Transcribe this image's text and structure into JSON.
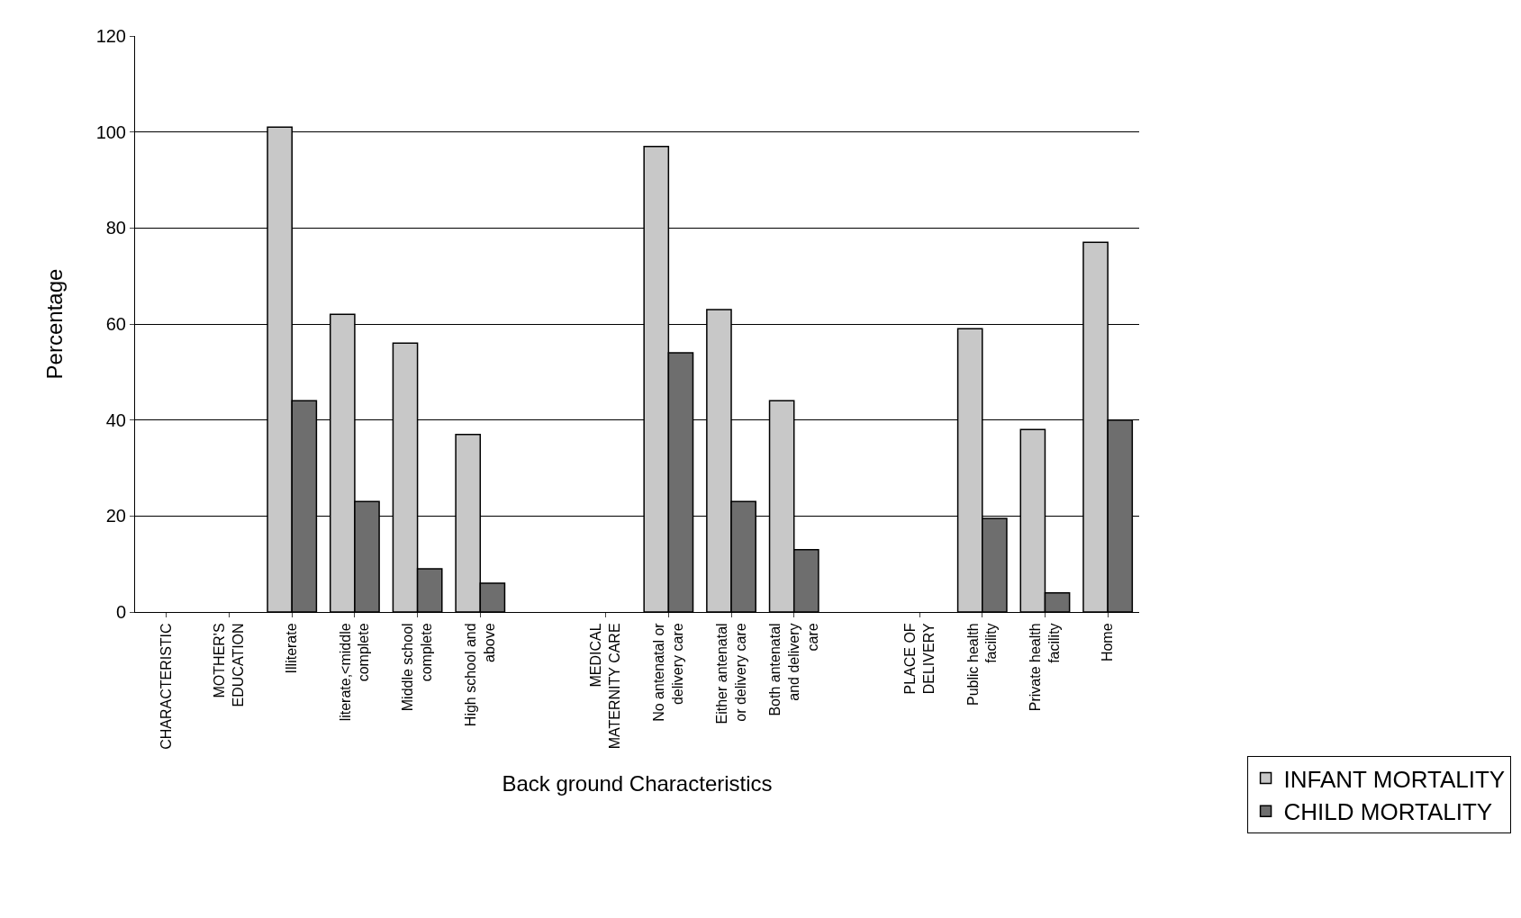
{
  "chart_data": {
    "type": "bar",
    "xlabel": "Back ground Characteristics",
    "ylabel": "Percentage",
    "categories": [
      "CHARACTERISTIC",
      "MOTHER'S EDUCATION",
      "Illiterate",
      "literate,<middle complete",
      "Middle school complete",
      "High school and above",
      null,
      "MEDICAL MATERNITY CARE",
      "No antenatal or delivery care",
      "Either antenatal or delivery care",
      "Both antenatal and delivery care",
      null,
      "PLACE OF DELIVERY",
      "Public health facility",
      "Private health facility",
      "Home"
    ],
    "series": [
      {
        "name": "INFANT MORTALITY",
        "color": "#c8c8c8",
        "values": [
          null,
          null,
          101,
          62,
          56,
          37,
          null,
          null,
          97,
          63,
          44,
          null,
          null,
          59,
          38,
          77
        ]
      },
      {
        "name": "CHILD MORTALITY",
        "color": "#6e6e6e",
        "values": [
          null,
          null,
          44,
          23,
          9,
          6,
          null,
          null,
          54,
          23,
          13,
          null,
          null,
          19.5,
          4,
          40
        ]
      }
    ],
    "ylim": [
      0,
      120
    ],
    "yticks": [
      0,
      20,
      40,
      60,
      80,
      100,
      120
    ],
    "grid": "y",
    "legend": "bottom right"
  }
}
